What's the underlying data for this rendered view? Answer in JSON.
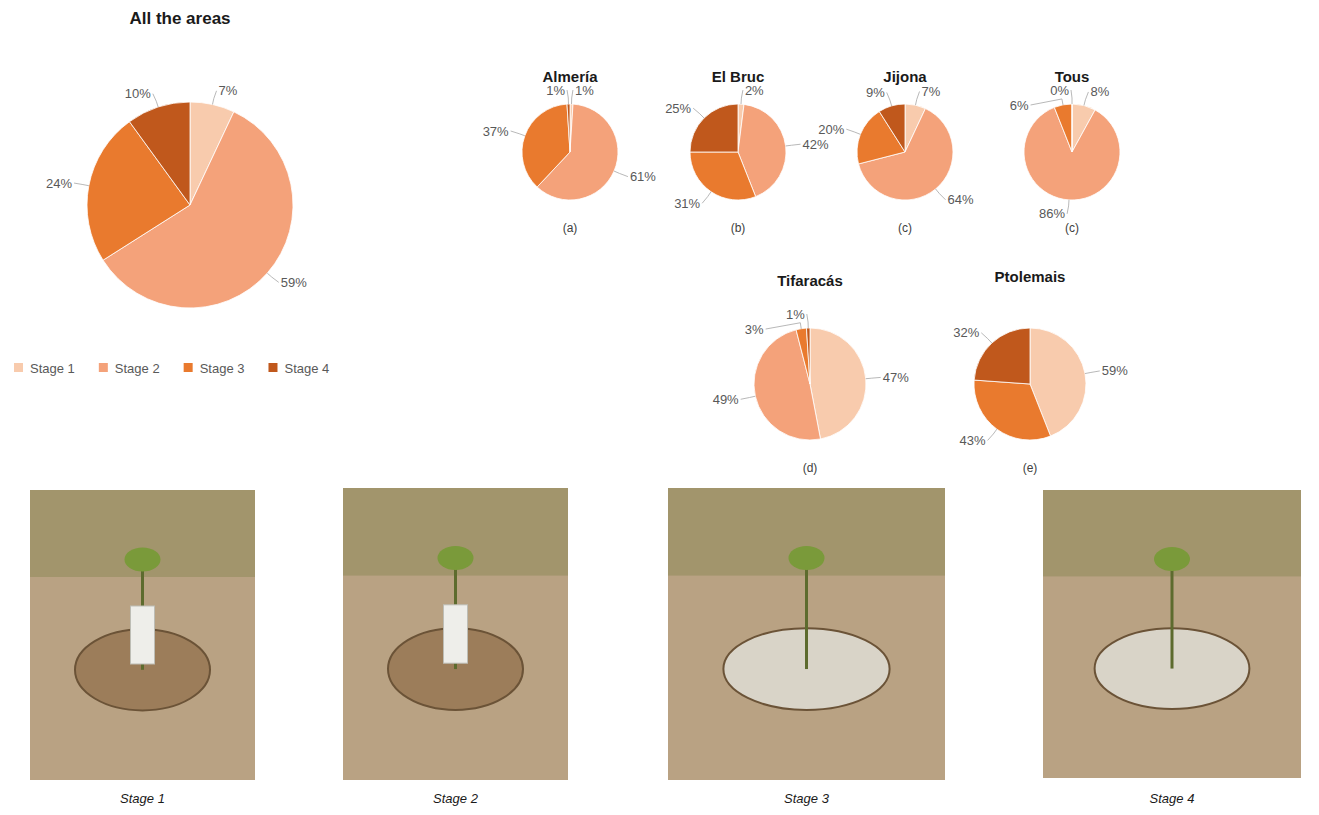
{
  "chart_data": [
    {
      "type": "pie",
      "title": "All the areas",
      "categories": [
        "Stage 1",
        "Stage 2",
        "Stage 3",
        "Stage 4"
      ],
      "values": [
        7,
        59,
        24,
        10
      ],
      "value_labels": [
        "7%",
        "59%",
        "24%",
        "10%"
      ],
      "colors": [
        "#f8cbad",
        "#f4a27a",
        "#e97a2e",
        "#c0581c"
      ],
      "data_labels": true,
      "legend": "bottom"
    },
    {
      "type": "pie",
      "title": "Almería",
      "subtitle": "(a)",
      "categories": [
        "Stage 1",
        "Stage 2",
        "Stage 3",
        "Stage 4"
      ],
      "values": [
        1,
        61,
        37,
        1
      ],
      "value_labels": [
        "1%",
        "61%",
        "37%",
        "1%"
      ],
      "colors": [
        "#f8cbad",
        "#f4a27a",
        "#e97a2e",
        "#c0581c"
      ],
      "data_labels": true
    },
    {
      "type": "pie",
      "title": "El Bruc",
      "subtitle": "(b)",
      "categories": [
        "Stage 1",
        "Stage 2",
        "Stage 3",
        "Stage 4"
      ],
      "values": [
        2,
        42,
        31,
        25
      ],
      "value_labels": [
        "2%",
        "42%",
        "31%",
        "25%"
      ],
      "colors": [
        "#f8cbad",
        "#f4a27a",
        "#e97a2e",
        "#c0581c"
      ],
      "data_labels": true
    },
    {
      "type": "pie",
      "title": "Jijona",
      "subtitle": "(c)",
      "categories": [
        "Stage 1",
        "Stage 2",
        "Stage 3",
        "Stage 4"
      ],
      "values": [
        7,
        64,
        20,
        9
      ],
      "value_labels": [
        "7%",
        "64%",
        "20%",
        "9%"
      ],
      "colors": [
        "#f8cbad",
        "#f4a27a",
        "#e97a2e",
        "#c0581c"
      ],
      "data_labels": true
    },
    {
      "type": "pie",
      "title": "Tous",
      "subtitle": "(c)",
      "categories": [
        "Stage 1",
        "Stage 2",
        "Stage 3",
        "Stage 4"
      ],
      "values": [
        8,
        86,
        6,
        0
      ],
      "value_labels": [
        "8%",
        "86%",
        "6%",
        "0%"
      ],
      "colors": [
        "#f8cbad",
        "#f4a27a",
        "#e97a2e",
        "#c0581c"
      ],
      "data_labels": true
    },
    {
      "type": "pie",
      "title": "Tifaracás",
      "subtitle": "(d)",
      "categories": [
        "Stage 1",
        "Stage 2",
        "Stage 3",
        "Stage 4"
      ],
      "values": [
        47,
        49,
        3,
        1
      ],
      "value_labels": [
        "47%",
        "49%",
        "3%",
        "1%"
      ],
      "colors": [
        "#f8cbad",
        "#f4a27a",
        "#e97a2e",
        "#c0581c"
      ],
      "data_labels": true
    },
    {
      "type": "pie",
      "title": "Ptolemais",
      "subtitle": "(e)",
      "categories": [
        "Stage 1",
        "Stage 3",
        "Stage 4"
      ],
      "values": [
        59,
        43,
        32
      ],
      "value_labels": [
        "59%",
        "43%",
        "32%"
      ],
      "colors": [
        "#f8cbad",
        "#e97a2e",
        "#c0581c"
      ],
      "data_labels": true
    }
  ],
  "photo_captions": [
    "Stage 1",
    "Stage 2",
    "Stage 3",
    "Stage 4"
  ]
}
